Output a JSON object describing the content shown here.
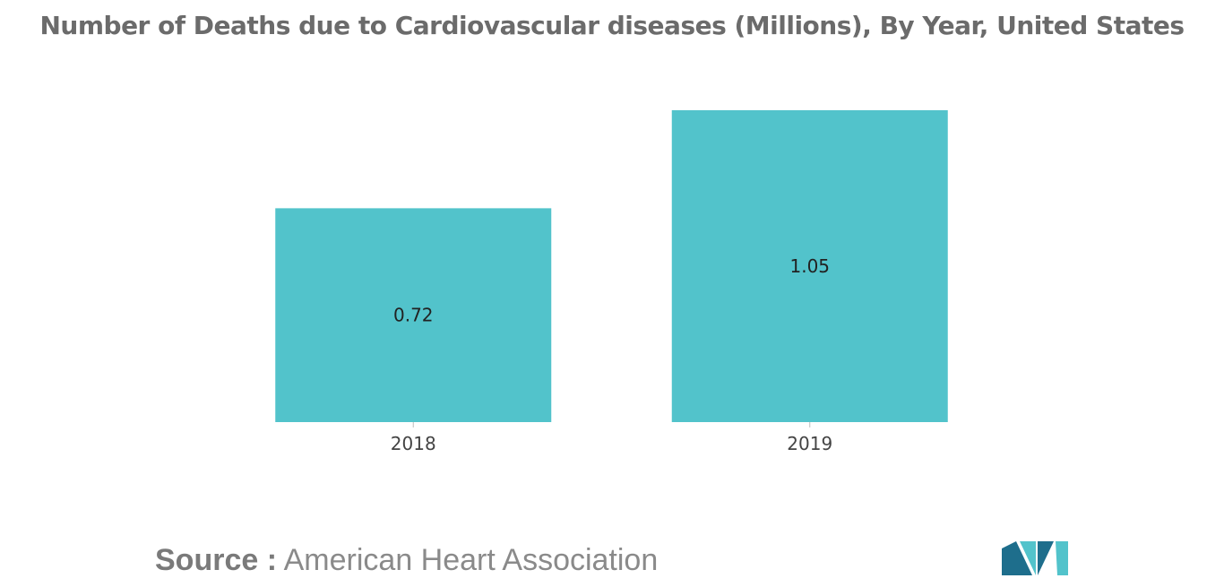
{
  "chart_data": {
    "type": "bar",
    "title": "Number of Deaths due to Cardiovascular diseases (Millions), By Year, United States",
    "categories": [
      "2018",
      "2019"
    ],
    "values": [
      0.72,
      1.05
    ],
    "data_labels": [
      "0.72",
      "1.05"
    ],
    "xlabel": "",
    "ylabel": "",
    "ylim": [
      0,
      1.05
    ],
    "grid": false,
    "bar_color": "#52C3CB"
  },
  "source": {
    "prefix": "Source :",
    "text": "American Heart Association"
  },
  "logo": {
    "icon": "mordor-intelligence-logo-icon",
    "colors": [
      "#1E6E8C",
      "#52C3CB"
    ]
  }
}
